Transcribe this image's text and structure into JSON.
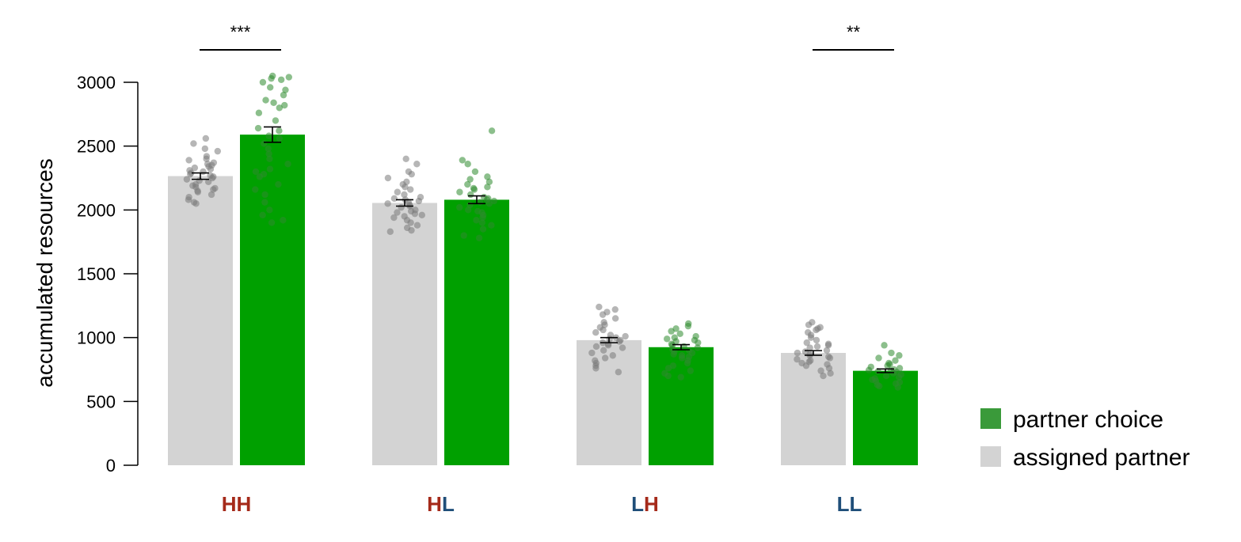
{
  "chart_data": {
    "type": "bar",
    "xlabel": "",
    "ylabel": "accumulated resources",
    "ylim": [
      0,
      3000
    ],
    "yticks": [
      0,
      500,
      1000,
      1500,
      2000,
      2500,
      3000
    ],
    "categories": [
      {
        "label": "HH",
        "parts": [
          {
            "text": "H",
            "color": "#a52a1a"
          },
          {
            "text": "H",
            "color": "#a52a1a"
          }
        ]
      },
      {
        "label": "HL",
        "parts": [
          {
            "text": "H",
            "color": "#a52a1a"
          },
          {
            "text": "L",
            "color": "#1f4e79"
          }
        ]
      },
      {
        "label": "LH",
        "parts": [
          {
            "text": "L",
            "color": "#1f4e79"
          },
          {
            "text": "H",
            "color": "#a52a1a"
          }
        ]
      },
      {
        "label": "LL",
        "parts": [
          {
            "text": "L",
            "color": "#1f4e79"
          },
          {
            "text": "L",
            "color": "#1f4e79"
          }
        ]
      }
    ],
    "series": [
      {
        "name": "assigned partner",
        "bar_color": "#d3d3d3",
        "point_color": "#7a7a7a",
        "values": [
          2265,
          2055,
          980,
          880
        ],
        "errors": [
          25,
          25,
          20,
          18
        ],
        "points": [
          [
            2560,
            2520,
            2480,
            2460,
            2420,
            2400,
            2390,
            2370,
            2360,
            2350,
            2340,
            2330,
            2320,
            2310,
            2300,
            2290,
            2280,
            2270,
            2260,
            2250,
            2240,
            2230,
            2220,
            2200,
            2190,
            2180,
            2170,
            2160,
            2150,
            2140,
            2120,
            2100,
            2080,
            2060,
            2050
          ],
          [
            2400,
            2360,
            2300,
            2280,
            2250,
            2220,
            2200,
            2180,
            2160,
            2140,
            2120,
            2100,
            2090,
            2080,
            2070,
            2060,
            2050,
            2040,
            2030,
            2020,
            2000,
            1990,
            1980,
            1970,
            1960,
            1950,
            1940,
            1920,
            1900,
            1880,
            1860,
            1840,
            1830
          ],
          [
            1240,
            1220,
            1200,
            1180,
            1150,
            1120,
            1100,
            1080,
            1060,
            1040,
            1020,
            1010,
            1000,
            990,
            980,
            970,
            960,
            950,
            940,
            930,
            920,
            900,
            880,
            860,
            840,
            820,
            800,
            780,
            760,
            730
          ],
          [
            1120,
            1100,
            1080,
            1070,
            1060,
            1040,
            1020,
            1000,
            980,
            960,
            950,
            940,
            930,
            920,
            900,
            890,
            880,
            870,
            860,
            850,
            840,
            830,
            820,
            810,
            800,
            790,
            780,
            760,
            740,
            720,
            700
          ]
        ]
      },
      {
        "name": "partner choice",
        "bar_color": "#00a000",
        "point_color": "#2e8b2e",
        "values": [
          2590,
          2080,
          925,
          740
        ],
        "errors": [
          60,
          30,
          20,
          14
        ],
        "points": [
          [
            3050,
            3040,
            3030,
            3020,
            3000,
            2960,
            2940,
            2900,
            2860,
            2840,
            2820,
            2800,
            2760,
            2700,
            2640,
            2620,
            2580,
            2560,
            2520,
            2480,
            2440,
            2400,
            2360,
            2320,
            2300,
            2280,
            2260,
            2200,
            2160,
            2120,
            2060,
            2000,
            1960,
            1920,
            1900
          ],
          [
            2620,
            2390,
            2360,
            2300,
            2260,
            2240,
            2220,
            2200,
            2180,
            2170,
            2160,
            2140,
            2120,
            2100,
            2090,
            2080,
            2070,
            2060,
            2050,
            2040,
            2020,
            2000,
            1990,
            1980,
            1960,
            1940,
            1920,
            1900,
            1880,
            1850,
            1800,
            1780
          ],
          [
            1110,
            1090,
            1070,
            1050,
            1030,
            1010,
            1000,
            990,
            980,
            970,
            960,
            950,
            940,
            930,
            920,
            910,
            900,
            890,
            880,
            870,
            860,
            850,
            840,
            820,
            800,
            780,
            760,
            740,
            720,
            700,
            690
          ],
          [
            940,
            880,
            860,
            840,
            820,
            800,
            790,
            780,
            770,
            760,
            750,
            745,
            740,
            735,
            730,
            720,
            710,
            700,
            690,
            680,
            670,
            660,
            650,
            640,
            630,
            620,
            610
          ]
        ]
      }
    ],
    "significance": [
      {
        "category_index": 0,
        "label": "***"
      },
      {
        "category_index": 3,
        "label": "**"
      }
    ],
    "legend": {
      "placement": "bottom-right",
      "items": [
        {
          "label": "partner choice",
          "color": "#3a9a3a"
        },
        {
          "label": "assigned partner",
          "color": "#d3d3d3"
        }
      ]
    },
    "grid": false
  }
}
